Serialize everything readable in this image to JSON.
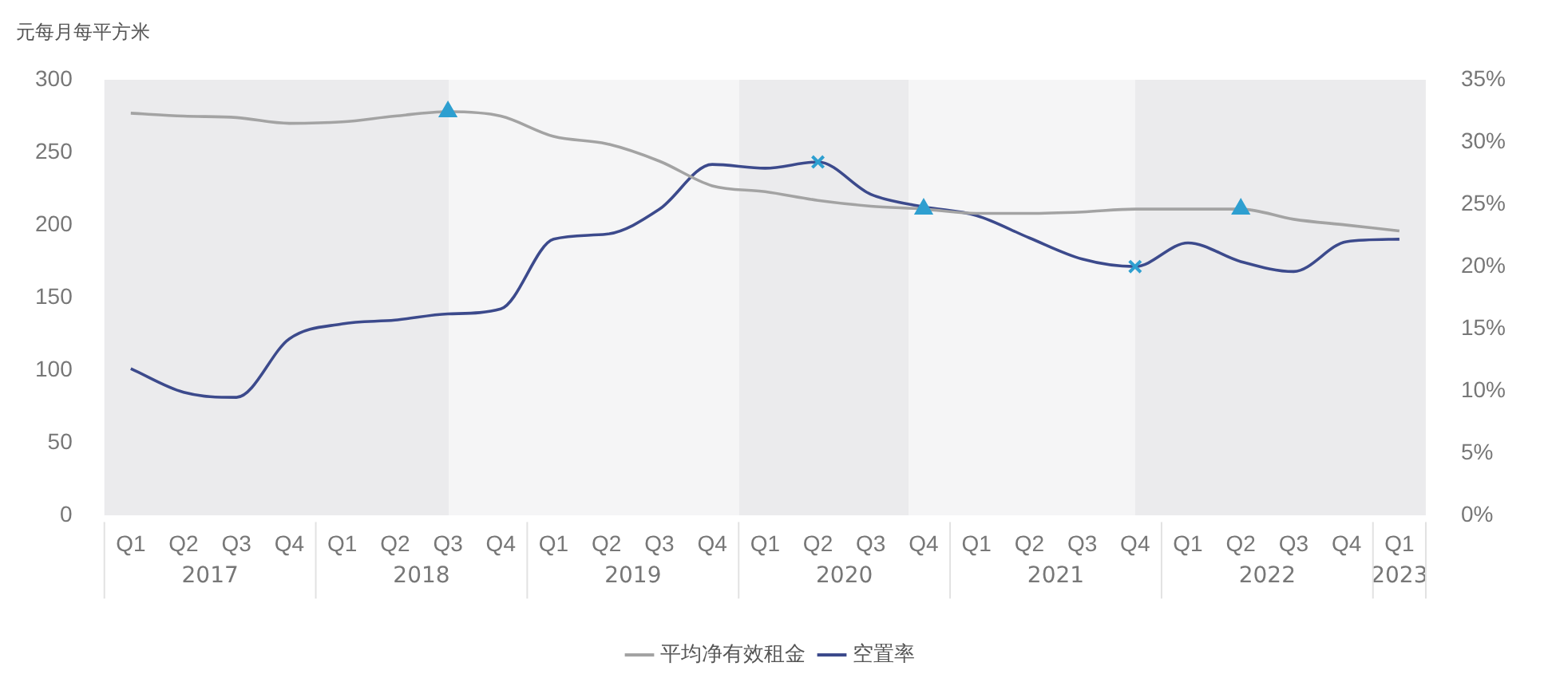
{
  "chart_data": {
    "type": "line",
    "ylabel": "元每月每平方米",
    "categories": [
      "Q1",
      "Q2",
      "Q3",
      "Q4",
      "Q1",
      "Q2",
      "Q3",
      "Q4",
      "Q1",
      "Q2",
      "Q3",
      "Q4",
      "Q1",
      "Q2",
      "Q3",
      "Q4",
      "Q1",
      "Q2",
      "Q3",
      "Q4",
      "Q1",
      "Q2",
      "Q3",
      "Q4",
      "Q1"
    ],
    "annotations": [
      "2017",
      "2018",
      "2019",
      "2020",
      "2021",
      "2022",
      "2023"
    ],
    "series": [
      {
        "name": "平均净有效租金",
        "color": "#a3a3a3",
        "values": [
          277,
          275,
          274,
          270,
          271,
          275,
          278,
          275,
          261,
          256,
          244,
          227,
          223,
          217,
          213,
          211,
          208,
          208,
          209,
          211,
          211,
          211,
          204,
          200,
          196
        ]
      },
      {
        "name": "空置率",
        "color": "#3c4a8c",
        "axis": "y2",
        "values": [
          11.8,
          9.9,
          9.5,
          14.2,
          15.4,
          15.7,
          16.2,
          16.6,
          22.2,
          22.6,
          24.6,
          28.2,
          27.9,
          28.4,
          25.8,
          24.8,
          24.1,
          22.3,
          20.6,
          20.0,
          21.9,
          20.4,
          19.6,
          22.0,
          22.2
        ]
      },
      {
        "type": "scatter",
        "marker": "triangle",
        "color": "#2e9fd0",
        "values": [
          null,
          null,
          null,
          null,
          null,
          null,
          278,
          null,
          null,
          null,
          null,
          null,
          null,
          null,
          null,
          211,
          null,
          null,
          null,
          null,
          null,
          211,
          null,
          null,
          null
        ]
      },
      {
        "type": "scatter",
        "marker": "cross",
        "color": "#2e9fd0",
        "axis": "y2",
        "values": [
          null,
          null,
          null,
          null,
          null,
          null,
          null,
          null,
          null,
          null,
          null,
          null,
          null,
          28.4,
          null,
          null,
          null,
          null,
          null,
          20.0,
          null,
          null,
          null,
          null,
          null
        ]
      }
    ],
    "ylim": [
      0,
      300
    ],
    "yticks": [
      0,
      50,
      100,
      150,
      200,
      250,
      300
    ],
    "y2lim": [
      0,
      35
    ],
    "y2ticks": [
      {
        "value": 0,
        "label": "0%"
      },
      {
        "value": 5,
        "label": "5%"
      },
      {
        "value": 10,
        "label": "10%"
      },
      {
        "value": 15,
        "label": "15%"
      },
      {
        "value": 20,
        "label": "20%"
      },
      {
        "value": 25,
        "label": "25%"
      },
      {
        "value": 30,
        "label": "30%"
      },
      {
        "value": 35,
        "label": "35%"
      }
    ],
    "grid": false,
    "legend": "bottom",
    "marker": "none",
    "line_style": "solid"
  }
}
